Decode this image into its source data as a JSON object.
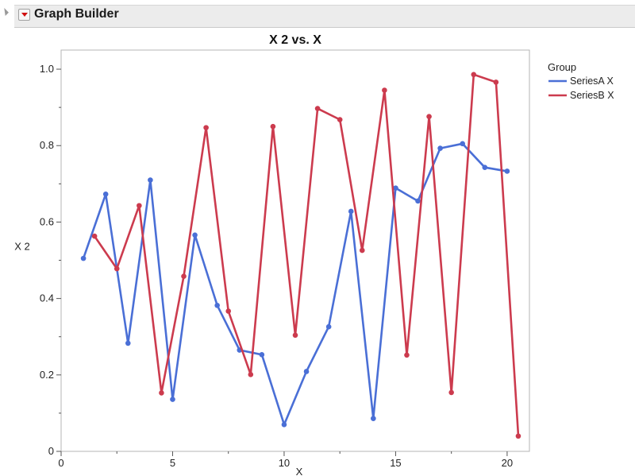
{
  "window": {
    "title": "Graph Builder"
  },
  "chart_data": {
    "type": "line",
    "title": "X 2 vs. X",
    "xlabel": "X",
    "ylabel": "X 2",
    "xlim": [
      0,
      21
    ],
    "ylim": [
      0,
      1.05
    ],
    "xticks": [
      0,
      5,
      10,
      15,
      20
    ],
    "yticks": [
      0,
      0.2,
      0.4,
      0.6,
      0.8,
      1.0
    ],
    "ytick_labels": [
      "0",
      "0.2",
      "0.4",
      "0.6",
      "0.8",
      "1.0"
    ],
    "legend_title": "Group",
    "legend_position": "right",
    "series": [
      {
        "name": "SeriesA X",
        "color": "#4a6fd6",
        "x": [
          1,
          2,
          3,
          4,
          5,
          6,
          7,
          8,
          9,
          10,
          11,
          12,
          13,
          14,
          15,
          16,
          17,
          18,
          19,
          20
        ],
        "y": [
          0.505,
          0.673,
          0.283,
          0.71,
          0.136,
          0.566,
          0.382,
          0.265,
          0.253,
          0.07,
          0.209,
          0.326,
          0.628,
          0.086,
          0.689,
          0.655,
          0.793,
          0.805,
          0.743,
          0.733
        ]
      },
      {
        "name": "SeriesB X",
        "color": "#cc3b4e",
        "x": [
          1.5,
          2.5,
          3.5,
          4.5,
          5.5,
          6.5,
          7.5,
          8.5,
          9.5,
          10.5,
          11.5,
          12.5,
          13.5,
          14.5,
          15.5,
          16.5,
          17.5,
          18.5,
          19.5,
          20.5
        ],
        "y": [
          0.563,
          0.478,
          0.643,
          0.153,
          0.458,
          0.847,
          0.367,
          0.201,
          0.85,
          0.304,
          0.897,
          0.868,
          0.526,
          0.945,
          0.252,
          0.876,
          0.154,
          0.986,
          0.966,
          0.04
        ]
      }
    ]
  }
}
